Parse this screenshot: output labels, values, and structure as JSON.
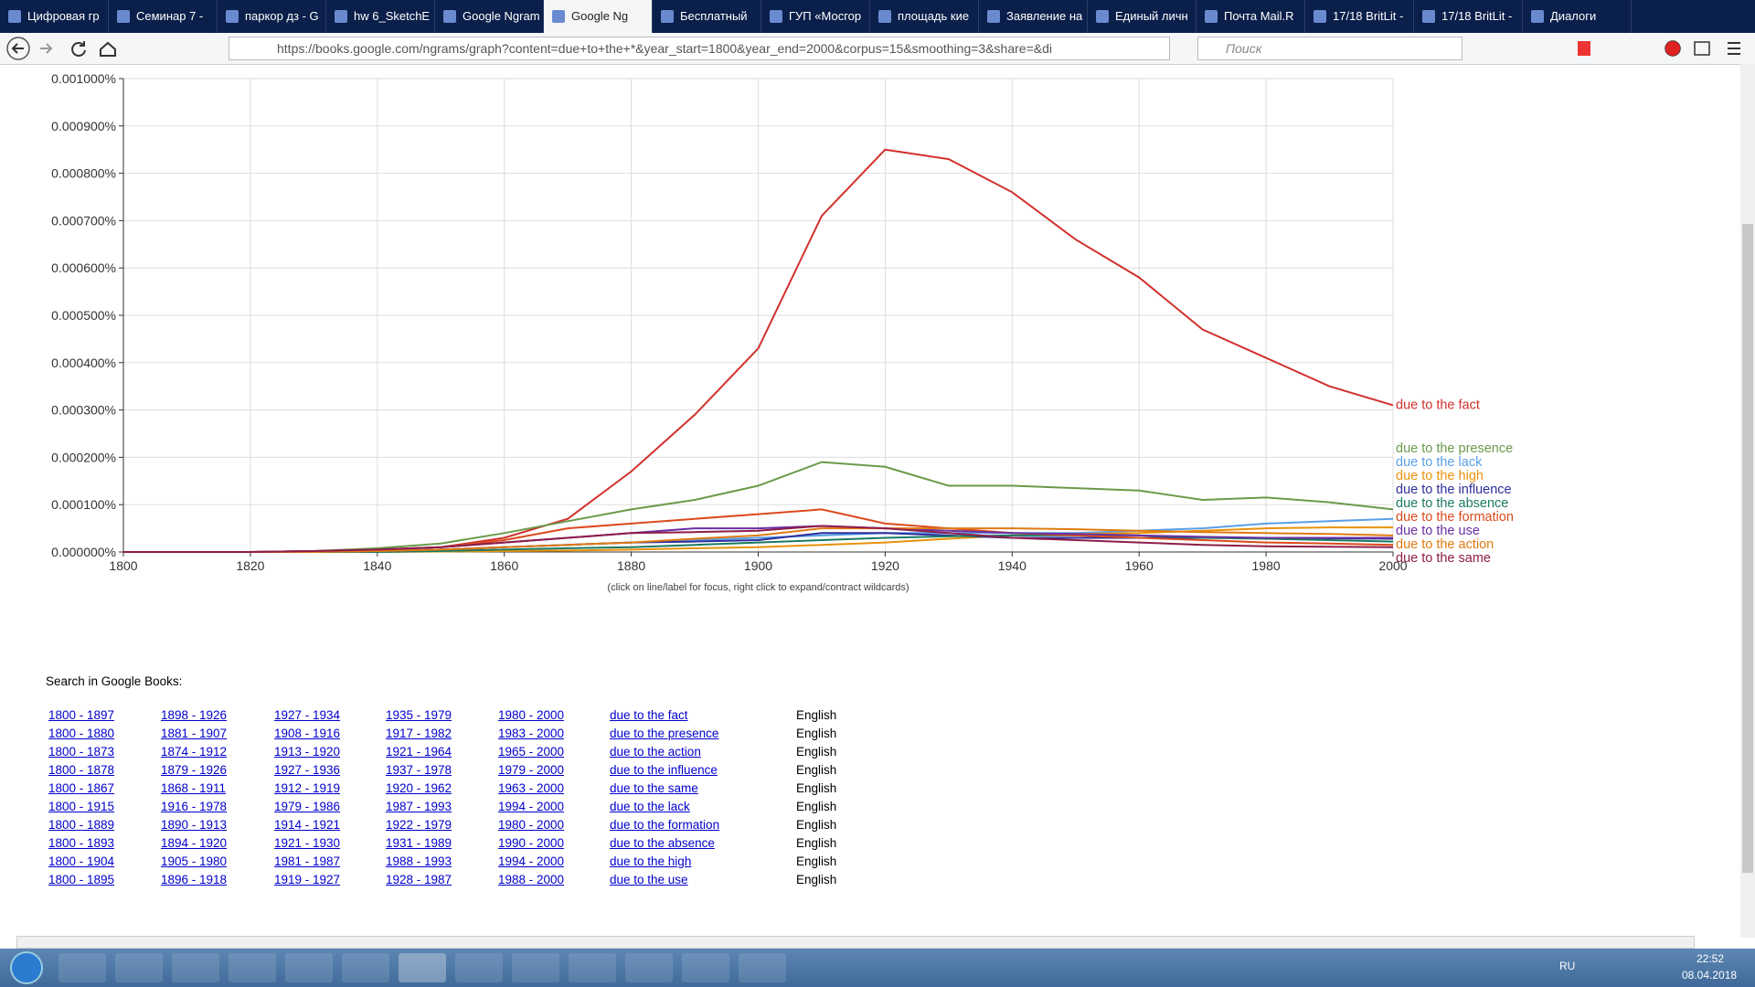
{
  "browser": {
    "tabs": [
      "Цифровая гр",
      "Семинар 7 - ",
      "паркор дз - G",
      "hw 6_SketchE",
      "Google Ngram",
      "Google Ng",
      "Бесплатный",
      "ГУП «Мосгор",
      "площадь кие",
      "Заявление на",
      "Единый личн",
      "Почта Mail.R",
      "17/18 BritLit -",
      "17/18 BritLit -",
      "Диалоги"
    ],
    "url": "https://books.google.com/ngrams/graph?content=due+to+the+*&year_start=1800&year_end=2000&corpus=15&smoothing=3&share=&di",
    "search_placeholder": "Поиск"
  },
  "chart_data": {
    "type": "line",
    "x": [
      1800,
      1810,
      1820,
      1830,
      1840,
      1850,
      1860,
      1870,
      1880,
      1890,
      1900,
      1910,
      1920,
      1930,
      1940,
      1950,
      1960,
      1970,
      1980,
      1990,
      2000
    ],
    "series": [
      {
        "name": "due to the fact",
        "color": "#d0312d",
        "values": [
          0,
          0,
          0,
          2e-06,
          5e-06,
          1e-05,
          3e-05,
          7e-05,
          0.00017,
          0.00029,
          0.00043,
          0.00071,
          0.00085,
          0.00083,
          0.00076,
          0.00066,
          0.00058,
          0.00047,
          0.00041,
          0.00035,
          0.00031
        ]
      },
      {
        "name": "due to the presence",
        "color": "#6b9a4a",
        "values": [
          0,
          0,
          0,
          2e-06,
          8e-06,
          1.8e-05,
          4e-05,
          6.5e-05,
          9e-05,
          0.00011,
          0.00014,
          0.00019,
          0.00018,
          0.00014,
          0.00014,
          0.000135,
          0.00013,
          0.00011,
          0.000115,
          0.000105,
          9e-05
        ]
      },
      {
        "name": "due to the lack",
        "color": "#5a9fe6",
        "values": [
          0,
          0,
          0,
          0,
          2e-06,
          5e-06,
          1e-05,
          1.5e-05,
          2e-05,
          2.5e-05,
          3e-05,
          3.5e-05,
          4e-05,
          4e-05,
          4e-05,
          4e-05,
          4.5e-05,
          5e-05,
          6e-05,
          6.5e-05,
          7e-05
        ]
      },
      {
        "name": "due to the high",
        "color": "#e8920c",
        "values": [
          0,
          0,
          0,
          0,
          0,
          1e-06,
          2e-06,
          3e-06,
          5e-06,
          8e-06,
          1e-05,
          1.5e-05,
          2e-05,
          2.8e-05,
          3.5e-05,
          3.8e-05,
          4e-05,
          4.5e-05,
          5e-05,
          5.2e-05,
          5.2e-05
        ]
      },
      {
        "name": "due to the influence",
        "color": "#2d2f9c",
        "values": [
          0,
          0,
          0,
          0,
          2e-06,
          5e-06,
          1e-05,
          1.5e-05,
          2e-05,
          2.2e-05,
          2.5e-05,
          4e-05,
          4e-05,
          3.5e-05,
          3e-05,
          3e-05,
          3e-05,
          3e-05,
          3e-05,
          2.9e-05,
          2.8e-05
        ]
      },
      {
        "name": "due to the absence",
        "color": "#1b7a63",
        "values": [
          0,
          0,
          0,
          0,
          0,
          2e-06,
          5e-06,
          8e-06,
          1e-05,
          1.5e-05,
          2e-05,
          2.5e-05,
          3e-05,
          3.3e-05,
          3.5e-05,
          3.5e-05,
          3.5e-05,
          3e-05,
          2.8e-05,
          2.5e-05,
          2.2e-05
        ]
      },
      {
        "name": "due to the formation",
        "color": "#db4a1c",
        "values": [
          0,
          0,
          0,
          2e-06,
          5e-06,
          1e-05,
          2.5e-05,
          5e-05,
          6e-05,
          7e-05,
          8e-05,
          9e-05,
          6e-05,
          5e-05,
          4e-05,
          3.5e-05,
          3e-05,
          2.5e-05,
          2e-05,
          1.8e-05,
          1.5e-05
        ]
      },
      {
        "name": "due to the use",
        "color": "#6b2fa3",
        "values": [
          0,
          0,
          0,
          2e-06,
          5e-06,
          1e-05,
          2e-05,
          3e-05,
          4e-05,
          5e-05,
          5e-05,
          5.5e-05,
          5e-05,
          4.5e-05,
          4e-05,
          3.8e-05,
          3.5e-05,
          3.2e-05,
          3e-05,
          3e-05,
          3e-05
        ]
      },
      {
        "name": "due to the action",
        "color": "#e07a12",
        "values": [
          0,
          0,
          0,
          0,
          2e-06,
          5e-06,
          1e-05,
          1.5e-05,
          2e-05,
          2.8e-05,
          3.5e-05,
          5e-05,
          5e-05,
          5e-05,
          5e-05,
          4.8e-05,
          4.5e-05,
          4.2e-05,
          4e-05,
          3.8e-05,
          3.5e-05
        ]
      },
      {
        "name": "due to the same",
        "color": "#8e1d4a",
        "values": [
          0,
          0,
          0,
          2e-06,
          5e-06,
          1e-05,
          2e-05,
          3e-05,
          4e-05,
          4.2e-05,
          4.5e-05,
          5.5e-05,
          5e-05,
          4e-05,
          3e-05,
          2.5e-05,
          2e-05,
          1.5e-05,
          1.2e-05,
          1.1e-05,
          1e-05
        ]
      }
    ],
    "xlim": [
      1800,
      2000
    ],
    "xticks": [
      1800,
      1820,
      1840,
      1860,
      1880,
      1900,
      1920,
      1940,
      1960,
      1980,
      2000
    ],
    "ylim": [
      0,
      0.001
    ],
    "yticks": [
      {
        "value": 0,
        "label": "0.000000%"
      },
      {
        "value": 0.0001,
        "label": "0.000100%"
      },
      {
        "value": 0.0002,
        "label": "0.000200%"
      },
      {
        "value": 0.0003,
        "label": "0.000300%"
      },
      {
        "value": 0.0004,
        "label": "0.000400%"
      },
      {
        "value": 0.0005,
        "label": "0.000500%"
      },
      {
        "value": 0.0006,
        "label": "0.000600%"
      },
      {
        "value": 0.0007,
        "label": "0.000700%"
      },
      {
        "value": 0.0008,
        "label": "0.000800%"
      },
      {
        "value": 0.0009,
        "label": "0.000900%"
      },
      {
        "value": 0.001,
        "label": "0.001000%"
      }
    ],
    "grid": true,
    "note": "(click on line/label for focus, right click to expand/contract wildcards)"
  },
  "search_books": {
    "title": "Search in Google Books:",
    "rows": [
      [
        "1800 - 1897",
        "1898 - 1926",
        "1927 - 1934",
        "1935 - 1979",
        "1980 - 2000",
        "due to the fact",
        "English"
      ],
      [
        "1800 - 1880",
        "1881 - 1907",
        "1908 - 1916",
        "1917 - 1982",
        "1983 - 2000",
        "due to the presence",
        "English"
      ],
      [
        "1800 - 1873",
        "1874 - 1912",
        "1913 - 1920",
        "1921 - 1964",
        "1965 - 2000",
        "due to the action",
        "English"
      ],
      [
        "1800 - 1878",
        "1879 - 1926",
        "1927 - 1936",
        "1937 - 1978",
        "1979 - 2000",
        "due to the influence",
        "English"
      ],
      [
        "1800 - 1867",
        "1868 - 1911",
        "1912 - 1919",
        "1920 - 1962",
        "1963 - 2000",
        "due to the same",
        "English"
      ],
      [
        "1800 - 1915",
        "1916 - 1978",
        "1979 - 1986",
        "1987 - 1993",
        "1994 - 2000",
        "due to the lack",
        "English"
      ],
      [
        "1800 - 1889",
        "1890 - 1913",
        "1914 - 1921",
        "1922 - 1979",
        "1980 - 2000",
        "due to the formation",
        "English"
      ],
      [
        "1800 - 1893",
        "1894 - 1920",
        "1921 - 1930",
        "1931 - 1989",
        "1990 - 2000",
        "due to the absence",
        "English"
      ],
      [
        "1800 - 1904",
        "1905 - 1980",
        "1981 - 1987",
        "1988 - 1993",
        "1994 - 2000",
        "due to the high",
        "English"
      ],
      [
        "1800 - 1895",
        "1896 - 1918",
        "1919 - 1927",
        "1928 - 1987",
        "1988 - 2000",
        "due to the use",
        "English"
      ]
    ]
  },
  "taskbar": {
    "language": "RU",
    "time": "22:52",
    "date": "08.04.2018"
  }
}
